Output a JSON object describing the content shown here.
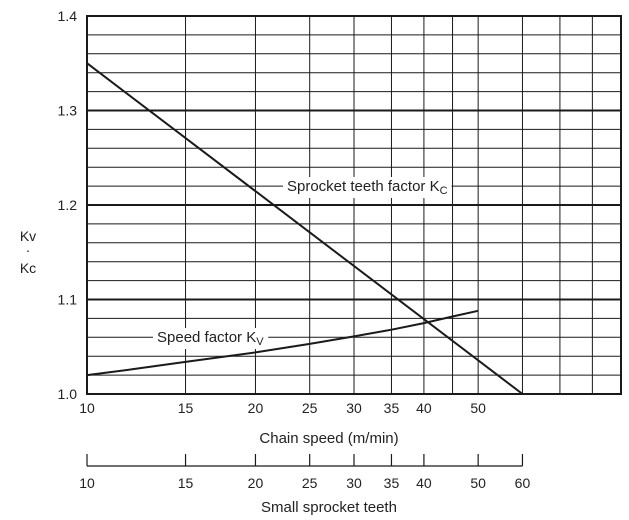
{
  "chart_data": {
    "type": "line",
    "y_label": {
      "top": "Kv",
      "dot": "·",
      "bottom": "Kc"
    },
    "ylim": [
      1.0,
      1.4
    ],
    "y_ticks": [
      "1.0",
      "1.1",
      "1.2",
      "1.3",
      "1.4"
    ],
    "x_label": "Chain speed (m/min)",
    "x_ticks": [
      "10",
      "15",
      "20",
      "25",
      "30",
      "35",
      "40",
      "50"
    ],
    "x2_label": "Small sprocket teeth",
    "x2_ticks": [
      "10",
      "15",
      "20",
      "25",
      "30",
      "35",
      "40",
      "50",
      "60"
    ],
    "scale": "logarithmic",
    "grid": true,
    "series": [
      {
        "name": "Speed factor Kv",
        "label_main": "Speed factor K",
        "label_sub": "V",
        "x": [
          10,
          12,
          15,
          20,
          25,
          30,
          35,
          40,
          45,
          50
        ],
        "y": [
          1.02,
          1.026,
          1.034,
          1.044,
          1.053,
          1.061,
          1.068,
          1.075,
          1.082,
          1.088
        ]
      },
      {
        "name": "Sprocket teeth factor Kc",
        "label_main": "Sprocket teeth factor K",
        "label_sub": "C",
        "x": [
          10,
          60
        ],
        "y": [
          1.35,
          1.0
        ]
      }
    ],
    "colors": {
      "line": "#1a1a1a",
      "grid": "#1a1a1a",
      "text": "#222222",
      "background": "#ffffff"
    }
  }
}
